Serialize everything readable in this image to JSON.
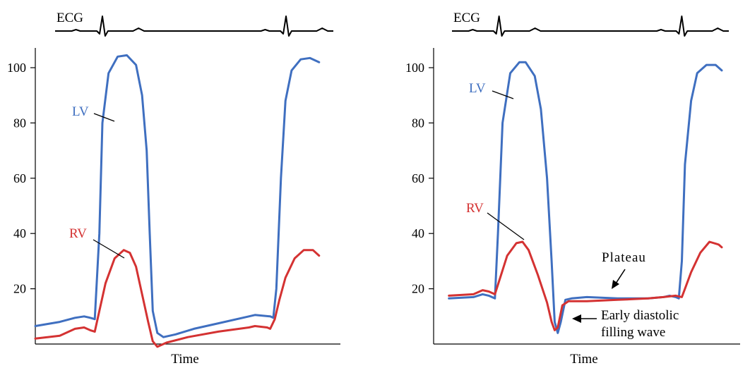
{
  "colors": {
    "lv": "#3f6fc0",
    "rv": "#d43232",
    "axis": "#000000"
  },
  "chart_data": [
    {
      "type": "line",
      "panel": "left",
      "xlabel": "Time",
      "ylabel": "",
      "ylim": [
        0,
        105
      ],
      "yticks": [
        20,
        40,
        60,
        80,
        100
      ],
      "ecg_label": "ECG",
      "annotations": [
        {
          "text": "LV",
          "series": "LV"
        },
        {
          "text": "RV",
          "series": "RV"
        }
      ],
      "series": [
        {
          "name": "LV",
          "color": "#3f6fc0",
          "points": [
            [
              0,
              6.5
            ],
            [
              8,
              8
            ],
            [
              13,
              9.5
            ],
            [
              16,
              10
            ],
            [
              18,
              9.5
            ],
            [
              19.5,
              9
            ],
            [
              21,
              40
            ],
            [
              22,
              80
            ],
            [
              24,
              98
            ],
            [
              27,
              104
            ],
            [
              30,
              104.5
            ],
            [
              33,
              101
            ],
            [
              35,
              90
            ],
            [
              36.5,
              70
            ],
            [
              37.5,
              40
            ],
            [
              38.5,
              12
            ],
            [
              40,
              4
            ],
            [
              42,
              2.5
            ],
            [
              46,
              3.5
            ],
            [
              52,
              5.5
            ],
            [
              60,
              7.5
            ],
            [
              70,
              10
            ],
            [
              72,
              10.5
            ],
            [
              77,
              10
            ],
            [
              78,
              9.5
            ],
            [
              79,
              20
            ],
            [
              80.5,
              60
            ],
            [
              82,
              88
            ],
            [
              84,
              99
            ],
            [
              87,
              103
            ],
            [
              90,
              103.5
            ],
            [
              93,
              102
            ]
          ]
        },
        {
          "name": "RV",
          "color": "#d43232",
          "points": [
            [
              0,
              2
            ],
            [
              8,
              3
            ],
            [
              13,
              5.5
            ],
            [
              16,
              6
            ],
            [
              18,
              5
            ],
            [
              19.5,
              4.5
            ],
            [
              21,
              12
            ],
            [
              23,
              22
            ],
            [
              26,
              31
            ],
            [
              29,
              34
            ],
            [
              31,
              33
            ],
            [
              33,
              28
            ],
            [
              35,
              18
            ],
            [
              37,
              8
            ],
            [
              38.5,
              1
            ],
            [
              40,
              -1
            ],
            [
              43,
              0.5
            ],
            [
              50,
              2.5
            ],
            [
              60,
              4.5
            ],
            [
              70,
              6
            ],
            [
              72,
              6.5
            ],
            [
              76,
              6
            ],
            [
              77,
              5.5
            ],
            [
              78.5,
              9
            ],
            [
              80,
              16
            ],
            [
              82,
              24
            ],
            [
              85,
              31
            ],
            [
              88,
              34
            ],
            [
              91,
              34
            ],
            [
              93,
              32
            ]
          ]
        }
      ]
    },
    {
      "type": "line",
      "panel": "right",
      "xlabel": "Time",
      "ylabel": "",
      "ylim": [
        0,
        105
      ],
      "yticks": [
        20,
        40,
        60,
        80,
        100
      ],
      "ecg_label": "ECG",
      "annotations": [
        {
          "text": "LV",
          "series": "LV"
        },
        {
          "text": "RV",
          "series": "RV"
        },
        {
          "text": "Plateau"
        },
        {
          "text": "Early diastolic filling wave",
          "lines": [
            "Early diastolic",
            "filling wave"
          ]
        }
      ],
      "series": [
        {
          "name": "LV",
          "color": "#3f6fc0",
          "points": [
            [
              5,
              16.5
            ],
            [
              13,
              17
            ],
            [
              16,
              18
            ],
            [
              18,
              17.5
            ],
            [
              20,
              16.5
            ],
            [
              21,
              40
            ],
            [
              22.5,
              80
            ],
            [
              25,
              98
            ],
            [
              28,
              102
            ],
            [
              30,
              102
            ],
            [
              33,
              97
            ],
            [
              35,
              85
            ],
            [
              37,
              60
            ],
            [
              38.5,
              30
            ],
            [
              39.5,
              8
            ],
            [
              40.5,
              4
            ],
            [
              41.5,
              8
            ],
            [
              43,
              16
            ],
            [
              45,
              16.5
            ],
            [
              50,
              17
            ],
            [
              60,
              16.5
            ],
            [
              70,
              16.5
            ],
            [
              75,
              17
            ],
            [
              77,
              17.5
            ],
            [
              79,
              17
            ],
            [
              80,
              16.5
            ],
            [
              81,
              30
            ],
            [
              82,
              65
            ],
            [
              84,
              88
            ],
            [
              86,
              98
            ],
            [
              89,
              101
            ],
            [
              92,
              101
            ],
            [
              94,
              99
            ]
          ]
        },
        {
          "name": "RV",
          "color": "#d43232",
          "points": [
            [
              5,
              17.5
            ],
            [
              13,
              18
            ],
            [
              16,
              19.5
            ],
            [
              18,
              19
            ],
            [
              20,
              18
            ],
            [
              22,
              25
            ],
            [
              24,
              32
            ],
            [
              27,
              36.5
            ],
            [
              29,
              37
            ],
            [
              31,
              34
            ],
            [
              34,
              25
            ],
            [
              37,
              15
            ],
            [
              38.5,
              8
            ],
            [
              39.5,
              5
            ],
            [
              40.5,
              6
            ],
            [
              42,
              14
            ],
            [
              44,
              15.5
            ],
            [
              50,
              15.5
            ],
            [
              60,
              16
            ],
            [
              70,
              16.5
            ],
            [
              75,
              17
            ],
            [
              79,
              17.5
            ],
            [
              81,
              17
            ],
            [
              82,
              20
            ],
            [
              84,
              26
            ],
            [
              87,
              33
            ],
            [
              90,
              37
            ],
            [
              93,
              36
            ],
            [
              94,
              35
            ]
          ]
        }
      ]
    }
  ]
}
